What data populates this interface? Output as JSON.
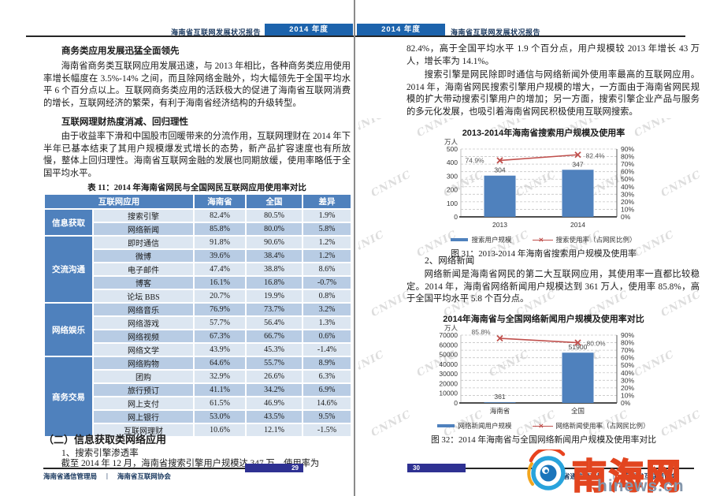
{
  "header": {
    "report_title": "海南省互联网发展状况报告",
    "year_badge": "2014 年度"
  },
  "left_page": {
    "heading1": "商务类应用发展迅猛全面领先",
    "para1": "海南省商务类互联网应用发展迅速，与 2013 年相比，各种商务类应用使用率增长幅度在 3.5%-14% 之间，而且除网络金融外，均大幅领先于全国平均水平 6 个百分点以上。互联网商务类应用的活跃极大的促进了海南省互联网消费的增长，互联网经济的繁荣，有利于海南省经济结构的升级转型。",
    "heading2": "互联网理财热度消减、回归理性",
    "para2": "由于收益率下滑和中国股市回暖带来的分流作用，互联网理财在 2014 年下半年已基本结束了其用户规模爆发式增长的态势，新产品扩容速度也有所放慢，整体上回归理性。海南省互联网金融的发展也同期放缓，使用率略低于全国平均水平。",
    "table_caption": "表 11：2014 年海南省网民与全国网民互联网应用使用率对比",
    "table": {
      "headers": [
        "互联网应用",
        "海南省",
        "全国",
        "差异"
      ],
      "groups": [
        {
          "category": "信息获取",
          "rows": [
            [
              "搜索引擎",
              "82.4%",
              "80.5%",
              "1.9%"
            ],
            [
              "网络新闻",
              "85.8%",
              "80.0%",
              "5.8%"
            ]
          ]
        },
        {
          "category": "交流沟通",
          "rows": [
            [
              "即时通信",
              "91.8%",
              "90.6%",
              "1.2%"
            ],
            [
              "微博",
              "39.6%",
              "38.4%",
              "1.2%"
            ],
            [
              "电子邮件",
              "47.4%",
              "38.8%",
              "8.6%"
            ],
            [
              "博客",
              "16.1%",
              "16.8%",
              "-0.7%"
            ],
            [
              "论坛 BBS",
              "20.7%",
              "19.9%",
              "0.8%"
            ]
          ]
        },
        {
          "category": "网络娱乐",
          "rows": [
            [
              "网络音乐",
              "76.9%",
              "73.7%",
              "3.2%"
            ],
            [
              "网络游戏",
              "57.7%",
              "56.4%",
              "1.3%"
            ],
            [
              "网络视频",
              "67.3%",
              "66.7%",
              "0.6%"
            ],
            [
              "网络文学",
              "43.9%",
              "45.3%",
              "-1.4%"
            ]
          ]
        },
        {
          "category": "商务交易",
          "rows": [
            [
              "网络购物",
              "64.6%",
              "55.7%",
              "8.9%"
            ],
            [
              "团购",
              "32.9%",
              "26.6%",
              "6.3%"
            ],
            [
              "旅行预订",
              "41.1%",
              "34.2%",
              "6.9%"
            ],
            [
              "网上支付",
              "61.5%",
              "46.9%",
              "14.6%"
            ],
            [
              "网上银行",
              "53.0%",
              "43.5%",
              "9.5%"
            ],
            [
              "互联网理财",
              "10.6%",
              "12.1%",
              "-1.5%"
            ]
          ]
        }
      ]
    },
    "heading3": "（二）信息获取类网络应用",
    "heading4": "1、搜索引擎渗透率",
    "para3": "截至 2014 年 12 月，海南省搜索引擎用户规模达 347 万，使用率为",
    "page_number": "29"
  },
  "right_page": {
    "para1": "82.4%，高于全国平均水平 1.9 个百分点，用户规模较 2013 年增长 43 万人，增长率为 14.1%。",
    "para2": "搜索引擎是网民除即时通信与网络新闻外使用率最高的互联网应用。2014 年，海南省网民搜索引擎用户规模的增大，一方面由于海南省网民规模的扩大带动搜索引擎用户的增加；另一方面，搜索引擎企业产品与服务的多元化发展，也吸引着海南省网民积极使用互联网搜索。",
    "fig31_caption": "图 31：2013-2014 年海南省搜索用户规模及使用率",
    "heading1": "2、网络新闻",
    "para3": "网络新闻是海南省网民的第二大互联网应用，其使用率一直都比较稳定。2014 年，海南省网络新闻用户规模达到 361 万人，使用率 85.8%，高于全国平均水平 5.8 个百分点。",
    "fig32_caption": "图 32：2014 年海南省与全国网络新闻用户规模及使用率对比",
    "page_number": "30"
  },
  "footer": {
    "left_org": "海南省通信管理局",
    "separator": "|",
    "right_org": "海南省互联网协会"
  },
  "watermark": {
    "text": "CNNIC"
  },
  "logo": {
    "name": "南海网",
    "domain": "hinews.cn"
  },
  "colors": {
    "bar": "#4f81bd",
    "line": "#c0504d",
    "table_header": "#4f81bd",
    "row_light": "#dce6f1",
    "row_dark": "#b8cce4",
    "badge_blue": "#1c63ac",
    "page_box_navy": "#2e3192",
    "logo_orange": "#e2451f"
  },
  "chart_data": [
    {
      "type": "bar+line",
      "title": "2013-2014年海南省搜索用户规模及使用率",
      "categories": [
        "2013",
        "2014"
      ],
      "series": [
        {
          "name": "搜索用户规模",
          "type": "bar",
          "axis": "left",
          "color": "#4f81bd",
          "values": [
            304,
            347
          ],
          "labels": [
            "304",
            "347"
          ]
        },
        {
          "name": "搜索使用率（占网民比例）",
          "type": "line",
          "axis": "right",
          "color": "#c0504d",
          "values": [
            74.9,
            82.4
          ],
          "labels": [
            "74.9%",
            "82.4%"
          ]
        }
      ],
      "left_axis": {
        "label": "万人",
        "min": 0,
        "max": 500,
        "step": 100
      },
      "right_axis": {
        "min": 0,
        "max": 90,
        "step": 10,
        "suffix": "%"
      },
      "grid": "dashed-horizontal",
      "legend_position": "bottom"
    },
    {
      "type": "bar+line",
      "title": "2014年海南省与全国网络新闻用户规模及使用率对比",
      "categories": [
        "海南省",
        "全国"
      ],
      "series": [
        {
          "name": "网络新闻用户规模",
          "type": "bar",
          "axis": "left",
          "color": "#4f81bd",
          "values": [
            361,
            51900
          ],
          "labels": [
            "361",
            "51900"
          ]
        },
        {
          "name": "网络新闻使用率（占网民比例）",
          "type": "line",
          "axis": "right",
          "color": "#c0504d",
          "values": [
            85.8,
            80.0
          ],
          "labels": [
            "85.8%",
            "80.0%"
          ]
        }
      ],
      "left_axis": {
        "label": "万人",
        "min": 0,
        "max": 70000,
        "step": 10000
      },
      "right_axis": {
        "min": 0,
        "max": 90,
        "step": 10,
        "suffix": "%"
      },
      "grid": "dashed-horizontal",
      "legend_position": "bottom"
    }
  ]
}
